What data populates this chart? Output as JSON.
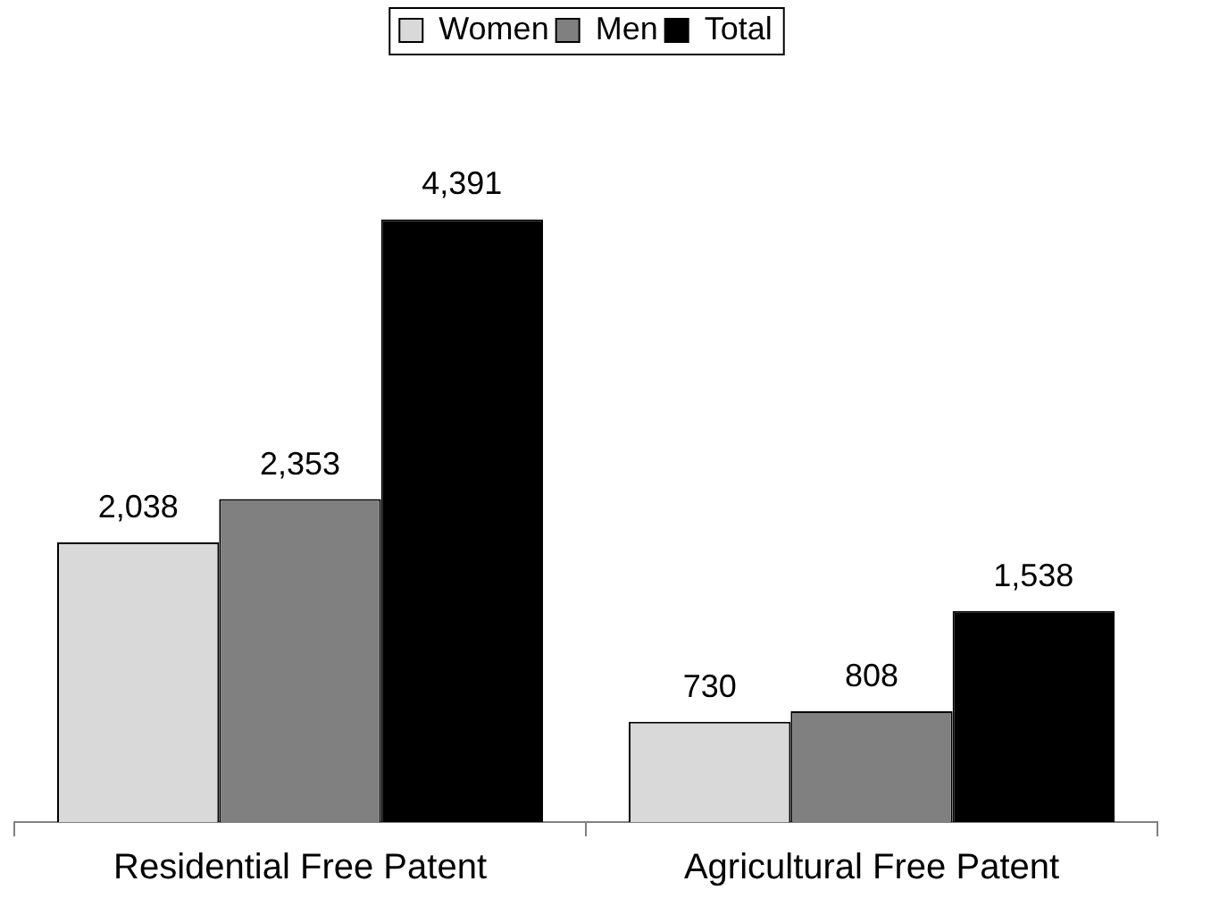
{
  "chart_data": {
    "type": "bar",
    "categories": [
      "Residential Free Patent",
      "Agricultural Free Patent"
    ],
    "series": [
      {
        "name": "Women",
        "color": "#d9d9d9",
        "values": [
          2038,
          730
        ],
        "value_labels": [
          "2,038",
          "730"
        ]
      },
      {
        "name": "Men",
        "color": "#808080",
        "values": [
          2353,
          808
        ],
        "value_labels": [
          "2,353",
          "808"
        ]
      },
      {
        "name": "Total",
        "color": "#000000",
        "values": [
          4391,
          1538
        ],
        "value_labels": [
          "4,391",
          "1,538"
        ]
      }
    ],
    "legend": "top",
    "grid": false,
    "tick_labels": "x"
  }
}
